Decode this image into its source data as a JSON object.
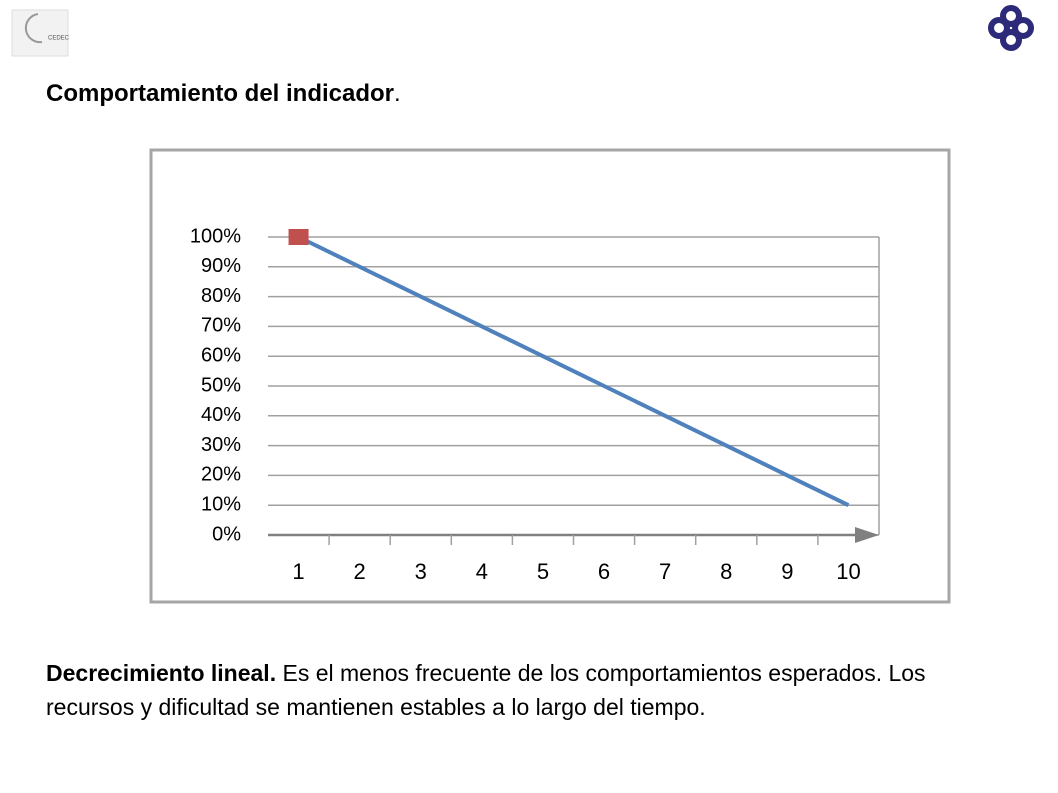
{
  "logo_text": "CEDEC",
  "heading": {
    "bold": "Comportamiento del indicador",
    "rest": "."
  },
  "paragraph": {
    "bold": "Decrecimiento lineal.",
    "rest": " Es el menos frecuente de los comportamientos esperados. Los recursos y dificultad se mantienen estables a lo largo del tiempo."
  },
  "chart_data": {
    "type": "line",
    "categories": [
      "1",
      "2",
      "3",
      "4",
      "5",
      "6",
      "7",
      "8",
      "9",
      "10"
    ],
    "series": [
      {
        "color": "#4f81bd",
        "marker_color": "#c0504d",
        "values": [
          100,
          90,
          80,
          70,
          60,
          50,
          40,
          30,
          20,
          10
        ]
      }
    ],
    "ylim": [
      0,
      100
    ],
    "yticks": [
      {
        "value": 0,
        "label": "0%"
      },
      {
        "value": 10,
        "label": "10%"
      },
      {
        "value": 20,
        "label": "20%"
      },
      {
        "value": 30,
        "label": "30%"
      },
      {
        "value": 40,
        "label": "40%"
      },
      {
        "value": 50,
        "label": "50%"
      },
      {
        "value": 60,
        "label": "60%"
      },
      {
        "value": 70,
        "label": "70%"
      },
      {
        "value": 80,
        "label": "80%"
      },
      {
        "value": 90,
        "label": "90%"
      },
      {
        "value": 100,
        "label": "100%"
      }
    ],
    "grid": true
  }
}
